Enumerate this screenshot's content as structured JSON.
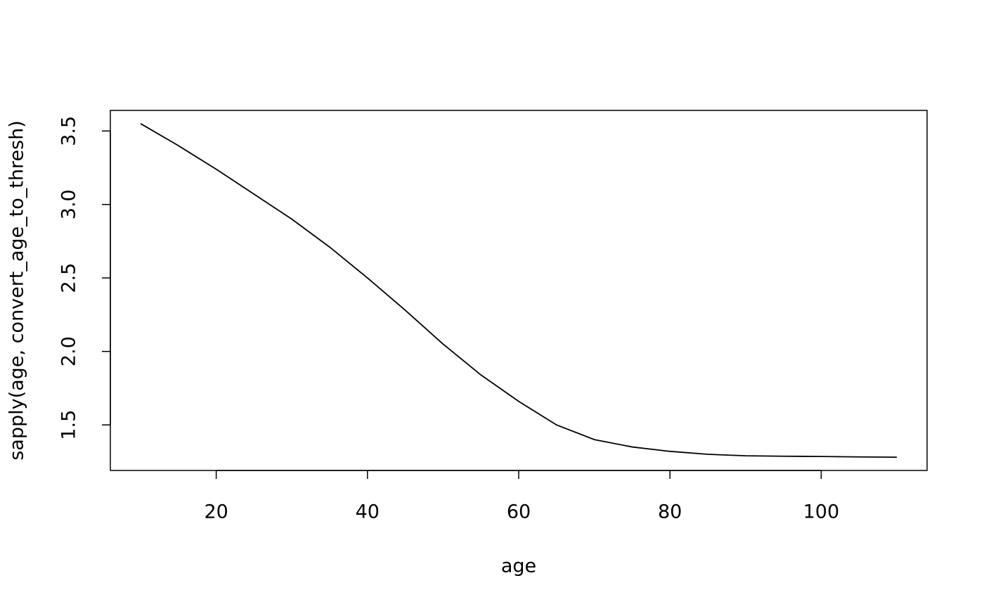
{
  "chart_data": {
    "type": "line",
    "x_label": "age",
    "y_label": "sapply(age, convert_age_to_thresh)",
    "x": [
      10,
      15,
      20,
      25,
      30,
      35,
      40,
      45,
      50,
      55,
      60,
      65,
      70,
      75,
      80,
      85,
      90,
      95,
      100,
      105,
      110
    ],
    "values": [
      3.55,
      3.4,
      3.24,
      3.07,
      2.9,
      2.71,
      2.5,
      2.28,
      2.05,
      1.84,
      1.66,
      1.5,
      1.4,
      1.35,
      1.32,
      1.3,
      1.29,
      1.287,
      1.285,
      1.282,
      1.28
    ],
    "color": "#000000",
    "xlim": [
      6,
      114
    ],
    "ylim": [
      1.19,
      3.64
    ],
    "xticks": [
      20,
      40,
      60,
      80,
      100
    ],
    "yticks": [
      1.5,
      2.0,
      2.5,
      3.0,
      3.5
    ],
    "grid": false
  }
}
